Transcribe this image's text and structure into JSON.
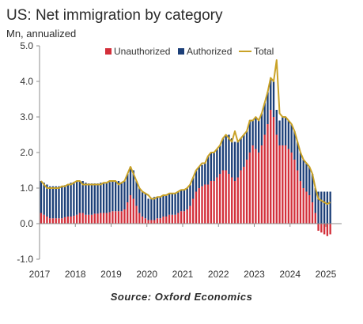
{
  "chart_data": {
    "type": "bar",
    "stacked": true,
    "title": "US: Net immigration by category",
    "subtitle": "Mn, annualized",
    "source": "Source: Oxford Economics",
    "ylim": [
      -1.0,
      5.0
    ],
    "y_ticks": [
      "5.0",
      "4.0",
      "3.0",
      "2.0",
      "1.0",
      "0.0",
      "-1.0"
    ],
    "x_ticks": [
      "2017",
      "2018",
      "2019",
      "2020",
      "2021",
      "2022",
      "2023",
      "2024",
      "2025"
    ],
    "x_start": "2017-01",
    "grid": false,
    "legend_position": "top",
    "colors": {
      "unauthorized": "#d32f3a",
      "authorized": "#1c3f78",
      "total": "#c9a227"
    },
    "series": [
      {
        "name": "Unauthorized",
        "values": [
          0.3,
          0.25,
          0.2,
          0.15,
          0.15,
          0.15,
          0.15,
          0.15,
          0.18,
          0.2,
          0.2,
          0.22,
          0.25,
          0.3,
          0.3,
          0.25,
          0.25,
          0.25,
          0.28,
          0.28,
          0.3,
          0.3,
          0.3,
          0.32,
          0.35,
          0.35,
          0.35,
          0.35,
          0.4,
          0.6,
          0.8,
          0.7,
          0.5,
          0.3,
          0.2,
          0.15,
          0.1,
          0.1,
          0.1,
          0.15,
          0.15,
          0.2,
          0.2,
          0.25,
          0.25,
          0.25,
          0.3,
          0.35,
          0.35,
          0.4,
          0.5,
          0.7,
          0.9,
          1.0,
          1.05,
          1.1,
          1.1,
          1.2,
          1.2,
          1.3,
          1.4,
          1.5,
          1.5,
          1.4,
          1.3,
          1.2,
          1.3,
          1.5,
          1.6,
          1.8,
          2.0,
          2.2,
          2.1,
          2.0,
          2.2,
          2.5,
          2.8,
          3.2,
          3.0,
          2.5,
          2.2,
          2.2,
          2.2,
          2.1,
          2.0,
          1.8,
          1.5,
          1.2,
          1.0,
          0.9,
          0.8,
          0.6,
          0.3,
          -0.2,
          -0.25,
          -0.3,
          -0.35,
          -0.3
        ]
      },
      {
        "name": "Authorized",
        "values": [
          0.9,
          0.9,
          0.9,
          0.9,
          0.9,
          0.9,
          0.9,
          0.9,
          0.9,
          0.9,
          0.95,
          0.95,
          0.95,
          0.9,
          0.9,
          0.9,
          0.88,
          0.88,
          0.85,
          0.85,
          0.85,
          0.85,
          0.85,
          0.85,
          0.85,
          0.85,
          0.85,
          0.8,
          0.8,
          0.8,
          0.8,
          0.8,
          0.7,
          0.7,
          0.7,
          0.7,
          0.6,
          0.6,
          0.65,
          0.6,
          0.6,
          0.6,
          0.6,
          0.6,
          0.6,
          0.6,
          0.6,
          0.6,
          0.6,
          0.6,
          0.6,
          0.6,
          0.6,
          0.6,
          0.6,
          0.6,
          0.8,
          0.8,
          0.8,
          0.8,
          0.8,
          0.9,
          1.0,
          1.1,
          1.1,
          1.1,
          1.0,
          0.9,
          0.9,
          0.8,
          0.9,
          0.7,
          0.9,
          0.9,
          0.9,
          0.9,
          0.9,
          0.9,
          1.0,
          0.7,
          0.7,
          0.8,
          0.8,
          0.8,
          0.8,
          0.8,
          0.8,
          0.8,
          0.8,
          0.8,
          0.8,
          0.8,
          0.7,
          0.9,
          0.9,
          0.9,
          0.9,
          0.9
        ]
      },
      {
        "name": "Total",
        "type": "line",
        "values": [
          1.2,
          1.1,
          1.0,
          1.0,
          1.0,
          1.0,
          1.0,
          1.05,
          1.05,
          1.1,
          1.1,
          1.15,
          1.2,
          1.2,
          1.1,
          1.1,
          1.1,
          1.1,
          1.1,
          1.1,
          1.1,
          1.15,
          1.15,
          1.2,
          1.2,
          1.2,
          1.1,
          1.15,
          1.2,
          1.4,
          1.6,
          1.4,
          1.2,
          1.0,
          0.9,
          0.85,
          0.8,
          0.7,
          0.7,
          0.75,
          0.75,
          0.8,
          0.8,
          0.85,
          0.85,
          0.85,
          0.9,
          0.95,
          0.95,
          1.0,
          1.1,
          1.3,
          1.5,
          1.6,
          1.7,
          1.7,
          1.9,
          2.0,
          2.0,
          2.1,
          2.2,
          2.4,
          2.5,
          2.4,
          2.3,
          2.6,
          2.3,
          2.4,
          2.5,
          2.6,
          2.9,
          2.9,
          3.0,
          2.9,
          3.1,
          3.4,
          3.7,
          4.1,
          4.0,
          4.6,
          3.1,
          3.0,
          3.0,
          2.9,
          2.8,
          2.6,
          2.3,
          2.0,
          1.8,
          1.7,
          1.6,
          1.4,
          1.0,
          0.7,
          0.65,
          0.6,
          0.55,
          0.6
        ]
      }
    ]
  }
}
